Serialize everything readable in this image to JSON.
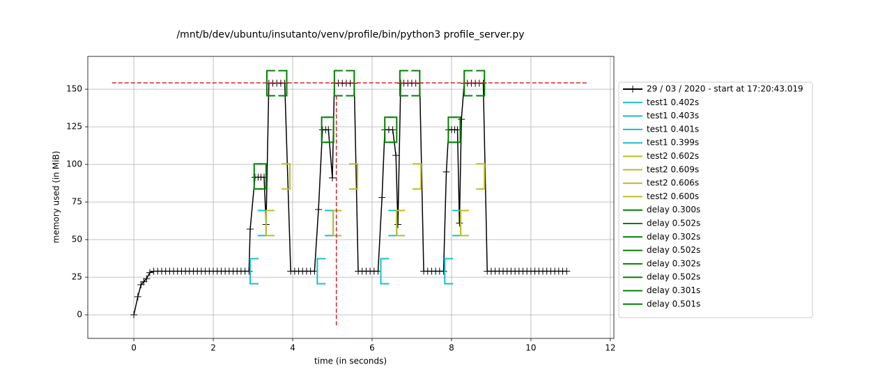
{
  "chart_data": {
    "type": "line",
    "title": "/mnt/b/dev/ubuntu/insutanto/venv/profile/bin/python3 profile_server.py",
    "x_label": "time (in seconds)",
    "y_label": "memory used (in MiB)",
    "xlim": [
      -1.16,
      12.09
    ],
    "ylim": [
      -15.7,
      171.8
    ],
    "xticks": [
      0,
      2,
      4,
      6,
      8,
      10,
      12
    ],
    "yticks": [
      0,
      25,
      50,
      75,
      100,
      125,
      150
    ],
    "grid": true,
    "legend": "right",
    "series": [
      {
        "name": "29 / 03 / 2020 - start at 17:20:43.019",
        "color": "#000000",
        "x": [
          0,
          0.1,
          0.18,
          0.25,
          0.32,
          0.4,
          0.5,
          0.6,
          0.7,
          0.8,
          0.9,
          1.0,
          1.1,
          1.2,
          1.3,
          1.4,
          1.5,
          1.6,
          1.7,
          1.8,
          1.9,
          2.0,
          2.1,
          2.2,
          2.3,
          2.4,
          2.5,
          2.6,
          2.7,
          2.8,
          2.9,
          2.93,
          3.05,
          3.13,
          3.2,
          3.28,
          3.33,
          3.4,
          3.5,
          3.6,
          3.7,
          3.8,
          3.95,
          4.05,
          4.15,
          4.25,
          4.35,
          4.45,
          4.55,
          4.65,
          4.75,
          4.83,
          4.9,
          5.0,
          5.05,
          5.15,
          5.25,
          5.35,
          5.45,
          5.55,
          5.65,
          5.75,
          5.85,
          5.95,
          6.05,
          6.15,
          6.25,
          6.32,
          6.42,
          6.52,
          6.6,
          6.65,
          6.72,
          6.8,
          6.9,
          7.0,
          7.1,
          7.2,
          7.3,
          7.4,
          7.5,
          7.6,
          7.7,
          7.8,
          7.87,
          7.93,
          8.0,
          8.08,
          8.15,
          8.2,
          8.25,
          8.32,
          8.4,
          8.5,
          8.6,
          8.7,
          8.8,
          8.9,
          9.0,
          9.1,
          9.2,
          9.3,
          9.4,
          9.5,
          9.6,
          9.7,
          9.8,
          9.9,
          10.0,
          10.1,
          10.2,
          10.3,
          10.4,
          10.5,
          10.6,
          10.7,
          10.8,
          10.9
        ],
        "values": [
          0,
          12,
          20,
          22,
          24,
          28,
          29,
          29,
          29,
          29,
          29,
          29,
          29,
          29,
          29,
          29,
          29,
          29,
          29,
          29,
          29,
          29,
          29,
          29,
          29,
          29,
          29,
          29,
          29,
          29,
          29,
          57,
          91.5,
          91.5,
          91.5,
          91.5,
          60,
          154,
          154,
          154,
          154,
          154,
          29,
          29,
          29,
          29,
          29,
          29,
          29,
          70,
          123,
          123,
          123,
          91,
          154,
          154,
          154,
          154,
          154,
          154,
          29,
          29,
          29,
          29,
          29,
          29,
          78,
          123,
          123,
          123,
          106,
          60,
          154,
          154,
          154,
          154,
          154,
          154,
          29,
          29,
          29,
          29,
          29,
          29,
          95,
          123,
          123,
          123,
          123,
          61,
          130,
          154,
          154,
          154,
          154,
          154,
          154,
          29,
          29,
          29,
          29,
          29,
          29,
          29,
          29,
          29,
          29,
          29,
          29,
          29,
          29,
          29,
          29,
          29,
          29,
          29,
          29,
          29
        ]
      }
    ],
    "functions": [
      {
        "name": "test1 0.402s",
        "color": "#17becf",
        "start": [
          2.93,
          29
        ],
        "end": [
          3.33,
          61
        ]
      },
      {
        "name": "test1 0.403s",
        "color": "#17becf",
        "start": [
          4.62,
          29
        ],
        "end": [
          5.02,
          61
        ]
      },
      {
        "name": "test1 0.401s",
        "color": "#17becf",
        "start": [
          6.22,
          29
        ],
        "end": [
          6.62,
          61
        ]
      },
      {
        "name": "test1 0.399s",
        "color": "#17becf",
        "start": [
          7.83,
          29
        ],
        "end": [
          8.23,
          61
        ]
      },
      {
        "name": "test2 0.602s",
        "color": "#bcbd22",
        "start": [
          3.33,
          61
        ],
        "end": [
          3.93,
          92
        ]
      },
      {
        "name": "test2 0.609s",
        "color": "#bcbd22",
        "start": [
          5.02,
          61
        ],
        "end": [
          5.63,
          92
        ]
      },
      {
        "name": "test2 0.606s",
        "color": "#bcbd22",
        "start": [
          6.62,
          61
        ],
        "end": [
          7.23,
          92
        ]
      },
      {
        "name": "test2 0.600s",
        "color": "#bcbd22",
        "start": [
          8.23,
          61
        ],
        "end": [
          8.83,
          92
        ]
      },
      {
        "name": "delay 0.300s",
        "color": "#008000",
        "start": [
          3.03,
          92
        ],
        "end": [
          3.33,
          92
        ]
      },
      {
        "name": "delay 0.502s",
        "color": "#008000",
        "start": [
          3.35,
          154
        ],
        "end": [
          3.85,
          154
        ]
      },
      {
        "name": "delay 0.302s",
        "color": "#008000",
        "start": [
          4.73,
          123
        ],
        "end": [
          5.03,
          123
        ]
      },
      {
        "name": "delay 0.502s",
        "color": "#008000",
        "start": [
          5.05,
          154
        ],
        "end": [
          5.55,
          154
        ]
      },
      {
        "name": "delay 0.302s",
        "color": "#008000",
        "start": [
          6.32,
          123
        ],
        "end": [
          6.62,
          123
        ]
      },
      {
        "name": "delay 0.502s",
        "color": "#008000",
        "start": [
          6.7,
          154
        ],
        "end": [
          7.2,
          154
        ]
      },
      {
        "name": "delay 0.301s",
        "color": "#008000",
        "start": [
          7.92,
          123
        ],
        "end": [
          8.22,
          123
        ]
      },
      {
        "name": "delay 0.501s",
        "color": "#008000",
        "start": [
          8.32,
          154
        ],
        "end": [
          8.83,
          154
        ]
      }
    ],
    "max_memory_lines": {
      "color": "#d62728",
      "hline": {
        "y": 154.2,
        "x": [
          -0.55,
          11.45
        ]
      },
      "vline": {
        "x": 5.1,
        "y": [
          -7,
          146
        ]
      }
    }
  }
}
